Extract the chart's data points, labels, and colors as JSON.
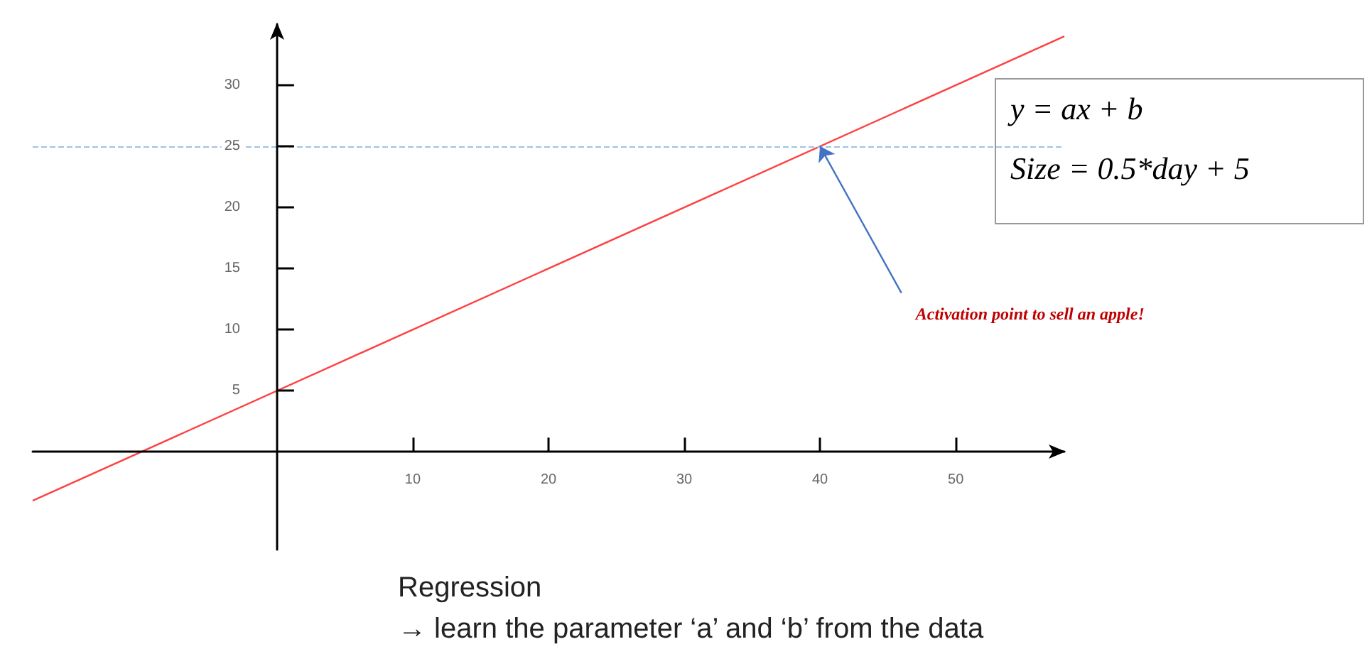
{
  "chart_data": {
    "type": "line",
    "x": [
      -18,
      58
    ],
    "series": [
      {
        "color": "#ff4040",
        "values": [
          -4,
          34
        ]
      }
    ],
    "xlim": [
      -18,
      58
    ],
    "ylim": [
      -8,
      35
    ],
    "xticks": [
      10,
      20,
      30,
      40,
      50
    ],
    "yticks": [
      5,
      10,
      15,
      20,
      25,
      30
    ],
    "ref_lines": [
      {
        "axis": "y",
        "value": 25,
        "color": "#9dc3e6",
        "line_style": "dashed"
      }
    ],
    "annotations": [
      "y = ax + b",
      "Size = 0.5*day + 5",
      {
        "text": "Activation point to sell an apple!",
        "x": 40,
        "y": 25
      },
      "Regression",
      "→ learn the parameter ‘a’ and ‘b’ from the data"
    ],
    "grid": false,
    "marker": "none",
    "line_style": "solid"
  }
}
